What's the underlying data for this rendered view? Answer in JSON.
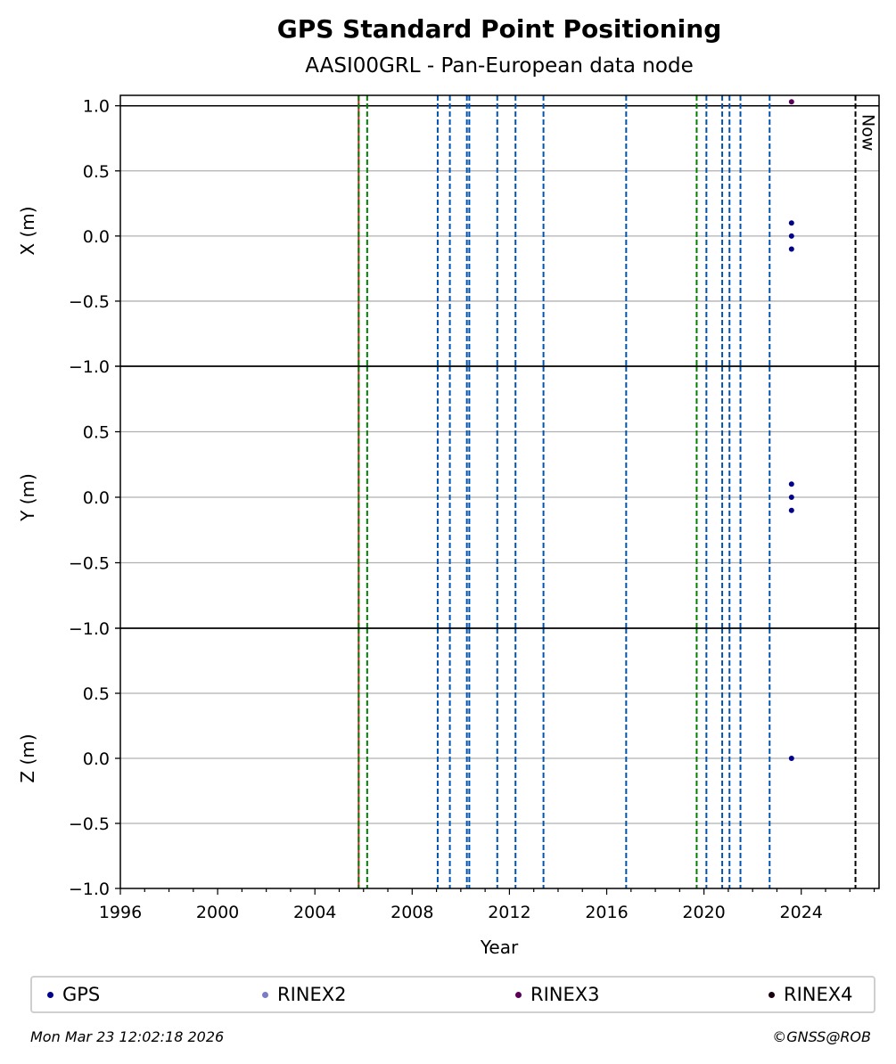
{
  "chart_data": {
    "type": "scatter",
    "title": "GPS Standard Point Positioning",
    "subtitle": "AASI00GRL - Pan-European data node",
    "xlabel": "Year",
    "xlim": [
      1996.0,
      2027.2
    ],
    "x_ticks": [
      1996,
      2000,
      2004,
      2008,
      2012,
      2016,
      2020,
      2024
    ],
    "x_tick_labels": [
      "1996",
      "2000",
      "2004",
      "2008",
      "2012",
      "2016",
      "2020",
      "2024"
    ],
    "panels": [
      {
        "ylabel": "X (m)",
        "ylim": [
          -1.0,
          1.08
        ],
        "y_ticks": [
          1.0,
          0.5,
          0.0,
          -0.5,
          -1.0
        ],
        "y_tick_labels": [
          "1.0",
          "0.5",
          "0.0",
          "−0.5",
          "−1.0"
        ],
        "points": [
          {
            "x": 2023.6,
            "y": 1.03,
            "series": "RINEX3"
          },
          {
            "x": 2023.6,
            "y": 0.1,
            "series": "GPS"
          },
          {
            "x": 2023.6,
            "y": 0.0,
            "series": "GPS"
          },
          {
            "x": 2023.6,
            "y": -0.1,
            "series": "GPS"
          }
        ]
      },
      {
        "ylabel": "Y (m)",
        "ylim": [
          -1.0,
          1.0
        ],
        "y_ticks": [
          1.0,
          0.5,
          0.0,
          -0.5,
          -1.0
        ],
        "y_tick_labels": [
          "",
          "0.5",
          "0.0",
          "−0.5",
          "−1.0"
        ],
        "points": [
          {
            "x": 2023.6,
            "y": 0.1,
            "series": "GPS"
          },
          {
            "x": 2023.6,
            "y": 0.0,
            "series": "GPS"
          },
          {
            "x": 2023.6,
            "y": -0.1,
            "series": "GPS"
          }
        ]
      },
      {
        "ylabel": "Z (m)",
        "ylim": [
          -1.0,
          1.0
        ],
        "y_ticks": [
          1.0,
          0.5,
          0.0,
          -0.5,
          -1.0
        ],
        "y_tick_labels": [
          "",
          "0.5",
          "0.0",
          "−0.5",
          "−1.0"
        ],
        "points": [
          {
            "x": 2023.6,
            "y": 0.0,
            "series": "GPS"
          }
        ]
      }
    ],
    "event_lines": [
      {
        "x": 2005.8,
        "color": "#d62728",
        "style": "solid"
      },
      {
        "x": 2005.8,
        "color": "#008000",
        "style": "dashed"
      },
      {
        "x": 2006.15,
        "color": "#008000",
        "style": "dashed"
      },
      {
        "x": 2009.05,
        "color": "#0055b3",
        "style": "dashed"
      },
      {
        "x": 2009.55,
        "color": "#0055b3",
        "style": "dashed"
      },
      {
        "x": 2010.25,
        "color": "#0055b3",
        "style": "dashed"
      },
      {
        "x": 2010.35,
        "color": "#0055b3",
        "style": "dashed"
      },
      {
        "x": 2011.5,
        "color": "#0055b3",
        "style": "dashed"
      },
      {
        "x": 2012.25,
        "color": "#0055b3",
        "style": "dashed"
      },
      {
        "x": 2013.4,
        "color": "#0055b3",
        "style": "dashed"
      },
      {
        "x": 2016.8,
        "color": "#0055b3",
        "style": "dashed"
      },
      {
        "x": 2019.7,
        "color": "#008000",
        "style": "dashed"
      },
      {
        "x": 2020.1,
        "color": "#0055b3",
        "style": "dashed"
      },
      {
        "x": 2020.75,
        "color": "#0055b3",
        "style": "dashed"
      },
      {
        "x": 2021.05,
        "color": "#0055b3",
        "style": "dashed"
      },
      {
        "x": 2021.5,
        "color": "#0055b3",
        "style": "dashed"
      },
      {
        "x": 2022.7,
        "color": "#0055b3",
        "style": "dashed"
      },
      {
        "x": 2026.23,
        "color": "#000000",
        "style": "dashed",
        "label": "Now"
      }
    ],
    "legend": {
      "placement": "bottom",
      "entries": [
        {
          "name": "GPS",
          "color": "#00008b"
        },
        {
          "name": "RINEX2",
          "color": "#7b7bc8"
        },
        {
          "name": "RINEX3",
          "color": "#5a005a"
        },
        {
          "name": "RINEX4",
          "color": "#1a0010"
        }
      ]
    },
    "grid": "y-major"
  },
  "footer": {
    "timestamp": "Mon Mar 23 12:02:18 2026",
    "credit": "©GNSS@ROB"
  }
}
